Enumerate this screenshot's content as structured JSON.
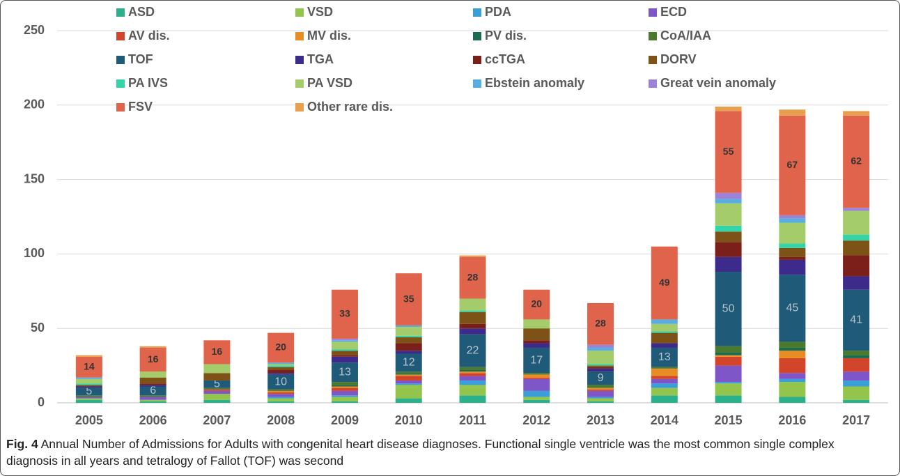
{
  "chart_data": {
    "type": "stacked_bar",
    "categories": [
      "2005",
      "2006",
      "2007",
      "2008",
      "2009",
      "2010",
      "2011",
      "2012",
      "2013",
      "2014",
      "2015",
      "2016",
      "2017"
    ],
    "ylim": [
      0,
      250
    ],
    "yticks": [
      0,
      50,
      100,
      150,
      200,
      250
    ],
    "grid": true,
    "legend": "top",
    "series": [
      {
        "name": "ASD",
        "color": "#2bb08b",
        "values": [
          2,
          1,
          2,
          1,
          1,
          3,
          5,
          2,
          1,
          5,
          5,
          4,
          2
        ]
      },
      {
        "name": "VSD",
        "color": "#93c44b",
        "values": [
          1,
          1,
          4,
          2,
          3,
          9,
          7,
          2,
          2,
          5,
          8,
          10,
          9
        ]
      },
      {
        "name": "PDA",
        "color": "#3a9fd8",
        "values": [
          0,
          0,
          0,
          1,
          1,
          1,
          3,
          4,
          1,
          3,
          1,
          2,
          4
        ]
      },
      {
        "name": "ECD",
        "color": "#7e56c8",
        "values": [
          1,
          2,
          2,
          2,
          3,
          2,
          3,
          8,
          4,
          3,
          11,
          4,
          6
        ]
      },
      {
        "name": "AV dis.",
        "color": "#d2452b",
        "values": [
          0,
          0,
          1,
          1,
          2,
          3,
          2,
          1,
          1,
          2,
          6,
          10,
          9
        ]
      },
      {
        "name": "MV dis.",
        "color": "#e88d23",
        "values": [
          0,
          0,
          0,
          1,
          1,
          1,
          1,
          2,
          1,
          5,
          1,
          5,
          0
        ]
      },
      {
        "name": "PV dis.",
        "color": "#1b6b50",
        "values": [
          0,
          0,
          0,
          0,
          1,
          1,
          1,
          0,
          0,
          0,
          2,
          2,
          2
        ]
      },
      {
        "name": "CoA/IAA",
        "color": "#4b7a2c",
        "values": [
          1,
          1,
          1,
          1,
          2,
          1,
          2,
          1,
          2,
          1,
          4,
          4,
          3
        ]
      },
      {
        "name": "TOF",
        "color": "#1f5a78",
        "values": [
          5,
          6,
          5,
          10,
          13,
          12,
          22,
          17,
          9,
          13,
          50,
          45,
          41
        ],
        "show_labels": true,
        "label_color": "#b8c4cc"
      },
      {
        "name": "TGA",
        "color": "#3d2b8c",
        "values": [
          1,
          1,
          0,
          1,
          4,
          2,
          4,
          3,
          2,
          3,
          10,
          10,
          9
        ]
      },
      {
        "name": "ccTGA",
        "color": "#7a1f1a",
        "values": [
          0,
          1,
          0,
          2,
          1,
          5,
          3,
          2,
          1,
          0,
          10,
          2,
          14
        ]
      },
      {
        "name": "DORV",
        "color": "#7d5216",
        "values": [
          1,
          4,
          5,
          2,
          3,
          4,
          8,
          8,
          1,
          7,
          7,
          6,
          10
        ]
      },
      {
        "name": "PA IVS",
        "color": "#34d3a8",
        "values": [
          1,
          0,
          0,
          1,
          1,
          1,
          1,
          0,
          1,
          1,
          4,
          3,
          4
        ]
      },
      {
        "name": "PA VSD",
        "color": "#a4cc6b",
        "values": [
          3,
          4,
          6,
          1,
          5,
          6,
          8,
          6,
          9,
          5,
          15,
          14,
          16
        ]
      },
      {
        "name": "Ebstein anomaly",
        "color": "#58aee0",
        "values": [
          1,
          0,
          0,
          1,
          1,
          1,
          0,
          0,
          2,
          3,
          3,
          3,
          0
        ]
      },
      {
        "name": "Great vein anomaly",
        "color": "#9c83d9",
        "values": [
          0,
          0,
          0,
          0,
          1,
          0,
          0,
          0,
          2,
          0,
          4,
          2,
          2
        ]
      },
      {
        "name": "FSV",
        "color": "#e0644c",
        "values": [
          14,
          16,
          16,
          20,
          33,
          35,
          28,
          20,
          28,
          49,
          55,
          67,
          62
        ],
        "show_labels": true,
        "label_color": "#333333"
      },
      {
        "name": "Other rare dis.",
        "color": "#e8a04e",
        "values": [
          1,
          1,
          0,
          0,
          0,
          0,
          1,
          0,
          0,
          0,
          3,
          4,
          3
        ]
      }
    ]
  },
  "caption": {
    "label": "Fig. 4",
    "text": "Annual Number of Admissions for Adults with congenital heart disease diagnoses. Functional single ventricle was the most common single complex diagnosis in all years and tetralogy of Fallot (TOF) was second"
  }
}
